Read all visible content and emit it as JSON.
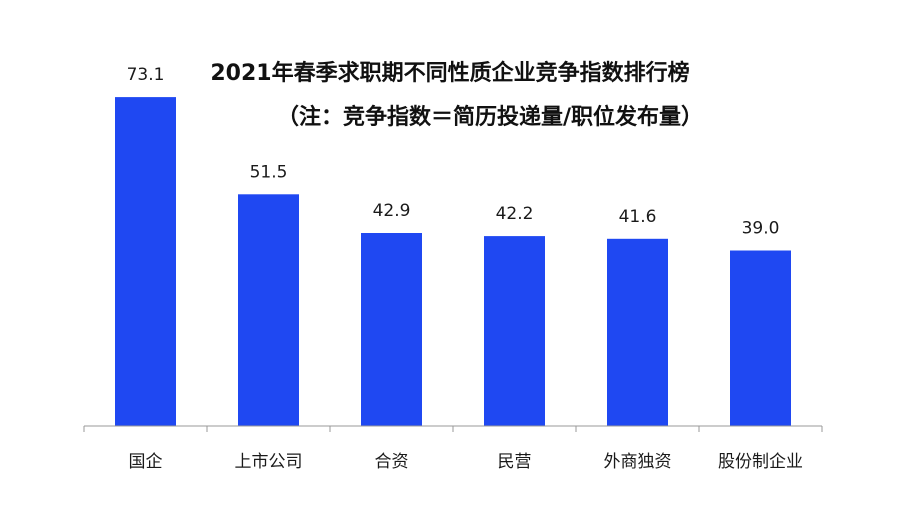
{
  "chart_data": {
    "type": "bar",
    "title": "2021年春季求职期不同性质企业竞争指数排行榜",
    "subtitle": "（注：竞争指数＝简历投递量/职位发布量）",
    "categories": [
      "国企",
      "上市公司",
      "合资",
      "民营",
      "外商独资",
      "股份制企业"
    ],
    "values": [
      73.1,
      51.5,
      42.9,
      42.2,
      41.6,
      39.0
    ],
    "value_labels": [
      "73.1",
      "51.5",
      "42.9",
      "42.2",
      "41.6",
      "39.0"
    ],
    "xlabel": "",
    "ylabel": "",
    "ylim": [
      0,
      80
    ],
    "grid": false,
    "legend": "none",
    "bar_color": "#1f48f2",
    "axis_color": "#999999"
  }
}
